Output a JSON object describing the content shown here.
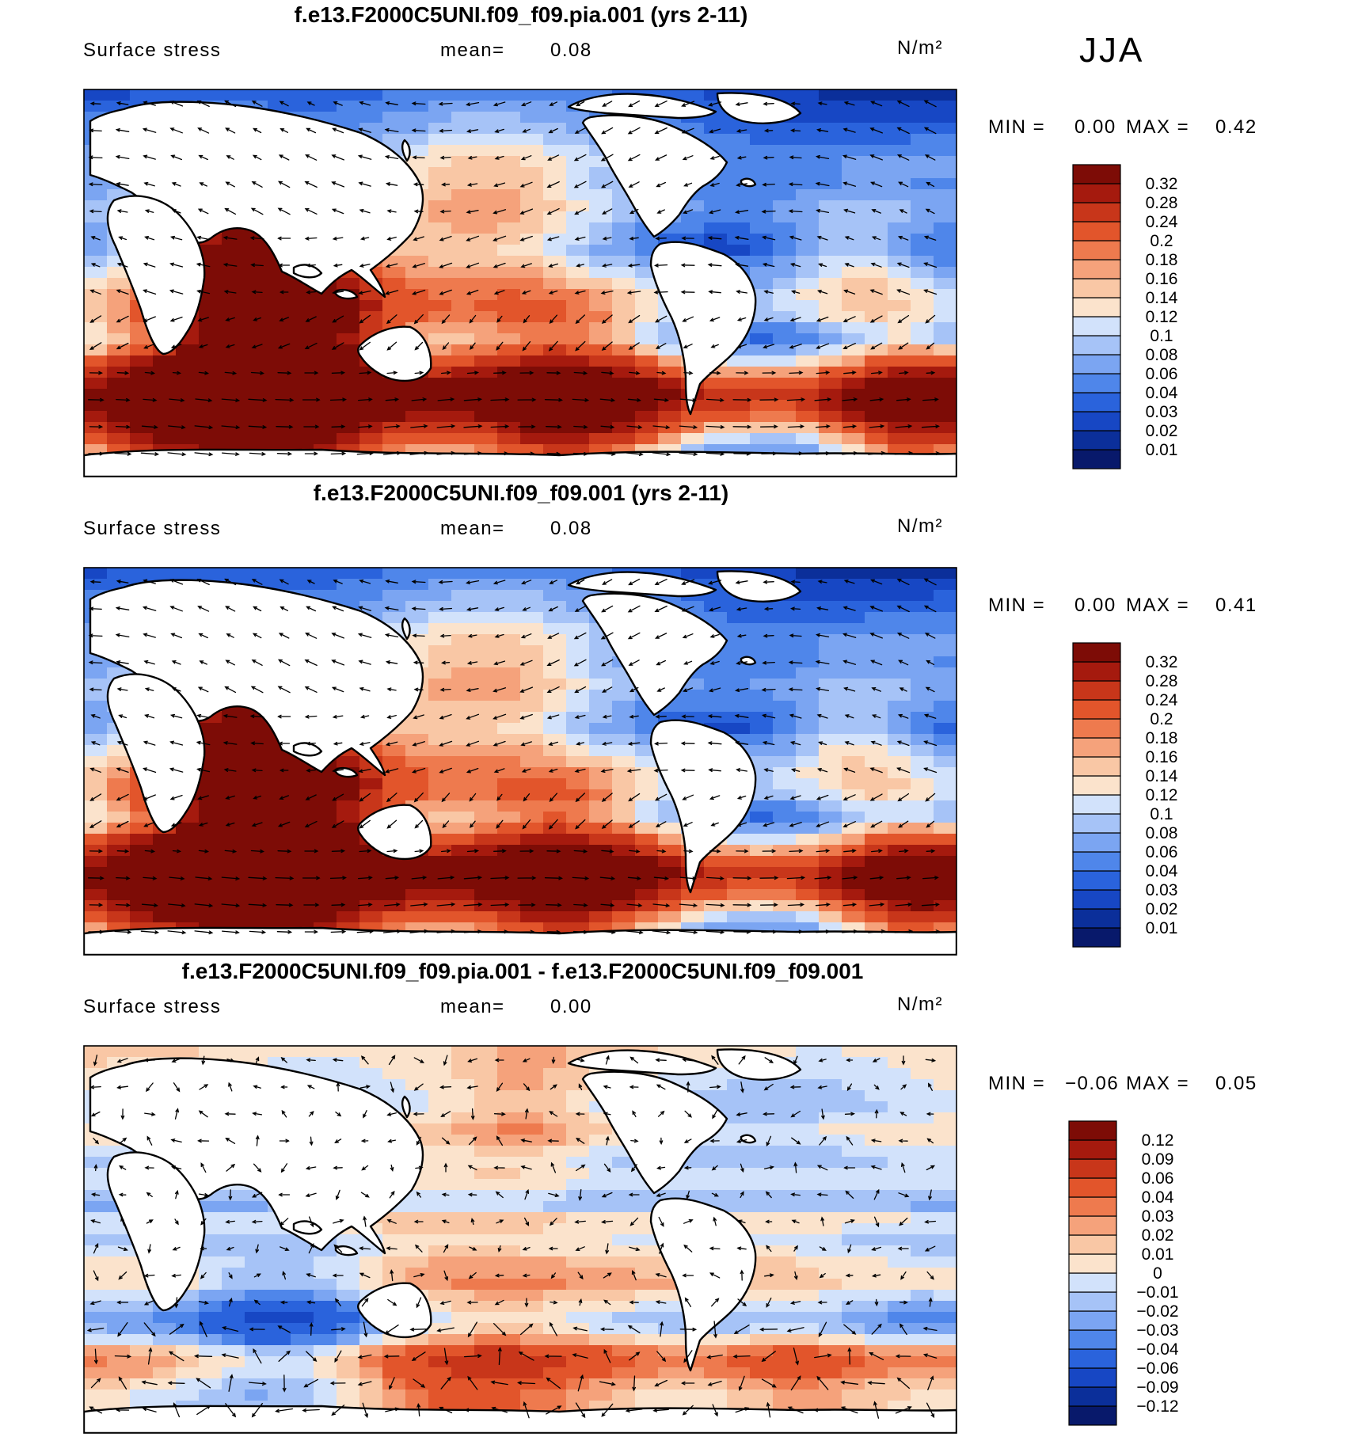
{
  "season_label": "JJA",
  "chart_data": [
    {
      "type": "heatmap",
      "title": "f.e13.F2000C5UNI.f09_f09.pia.001 (yrs 2-11)",
      "variable": "Surface stress",
      "mean_label": "mean=",
      "mean_value": "0.08",
      "units": "N/m²",
      "min_label": "MIN =",
      "min_value": "0.00",
      "max_label": "MAX =",
      "max_value": "0.42",
      "overlay": "wind stress vectors",
      "colorbar": {
        "levels": [
          "0.01",
          "0.02",
          "0.03",
          "0.04",
          "0.06",
          "0.08",
          "0.1",
          "0.12",
          "0.14",
          "0.16",
          "0.18",
          "0.2",
          "0.24",
          "0.28",
          "0.32"
        ],
        "colors": [
          "#08196b",
          "#0b2f9a",
          "#1747c4",
          "#2a63dc",
          "#4f86ea",
          "#7ba5f2",
          "#a6c3f7",
          "#d2e2fb",
          "#fbe3cc",
          "#f9c7a5",
          "#f5a27b",
          "#ee7a4e",
          "#e2552b",
          "#c8361a",
          "#a51a0e",
          "#7d0c06"
        ]
      }
    },
    {
      "type": "heatmap",
      "title": "f.e13.F2000C5UNI.f09_f09.001 (yrs 2-11)",
      "variable": "Surface stress",
      "mean_label": "mean=",
      "mean_value": "0.08",
      "units": "N/m²",
      "min_label": "MIN =",
      "min_value": "0.00",
      "max_label": "MAX =",
      "max_value": "0.41",
      "overlay": "wind stress vectors",
      "colorbar": {
        "levels": [
          "0.01",
          "0.02",
          "0.03",
          "0.04",
          "0.06",
          "0.08",
          "0.1",
          "0.12",
          "0.14",
          "0.16",
          "0.18",
          "0.2",
          "0.24",
          "0.28",
          "0.32"
        ],
        "colors": [
          "#08196b",
          "#0b2f9a",
          "#1747c4",
          "#2a63dc",
          "#4f86ea",
          "#7ba5f2",
          "#a6c3f7",
          "#d2e2fb",
          "#fbe3cc",
          "#f9c7a5",
          "#f5a27b",
          "#ee7a4e",
          "#e2552b",
          "#c8361a",
          "#a51a0e",
          "#7d0c06"
        ]
      }
    },
    {
      "type": "heatmap",
      "title": "f.e13.F2000C5UNI.f09_f09.pia.001 - f.e13.F2000C5UNI.f09_f09.001",
      "variable": "Surface stress",
      "mean_label": "mean=",
      "mean_value": "0.00",
      "units": "N/m²",
      "min_label": "MIN =",
      "min_value": "−0.06",
      "max_label": "MAX =",
      "max_value": "0.05",
      "overlay": "wind stress difference vectors",
      "colorbar": {
        "levels": [
          "−0.12",
          "−0.09",
          "−0.06",
          "−0.04",
          "−0.03",
          "−0.02",
          "−0.01",
          "0",
          "0.01",
          "0.02",
          "0.03",
          "0.04",
          "0.06",
          "0.09",
          "0.12"
        ],
        "colors": [
          "#08196b",
          "#0b2f9a",
          "#1747c4",
          "#2a63dc",
          "#4f86ea",
          "#7ba5f2",
          "#a6c3f7",
          "#d2e2fb",
          "#fbe3cc",
          "#f9c7a5",
          "#f5a27b",
          "#ee7a4e",
          "#e2552b",
          "#c8361a",
          "#a51a0e",
          "#7d0c06"
        ]
      }
    }
  ]
}
